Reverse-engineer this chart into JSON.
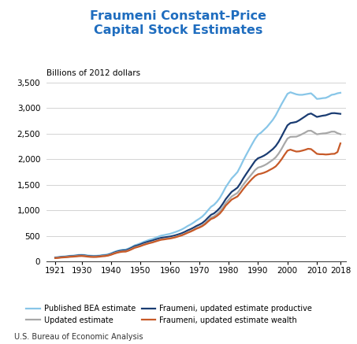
{
  "title": "Fraumeni Constant-Price\nCapital Stock Estimates",
  "ylabel": "Billions of 2012 dollars",
  "ylim": [
    0,
    3500
  ],
  "yticks": [
    0,
    500,
    1000,
    1500,
    2000,
    2500,
    3000,
    3500
  ],
  "xlabel_note": "U.S. Bureau of Economic Analysis",
  "xticks": [
    1921,
    1930,
    1940,
    1950,
    1960,
    1970,
    1980,
    1990,
    2000,
    2010,
    2018
  ],
  "title_color": "#1f6dbf",
  "background_color": "#ffffff",
  "grid_color": "#cccccc",
  "years": [
    1921,
    1922,
    1923,
    1924,
    1925,
    1926,
    1927,
    1928,
    1929,
    1930,
    1931,
    1932,
    1933,
    1934,
    1935,
    1936,
    1937,
    1938,
    1939,
    1940,
    1941,
    1942,
    1943,
    1944,
    1945,
    1946,
    1947,
    1948,
    1949,
    1950,
    1951,
    1952,
    1953,
    1954,
    1955,
    1956,
    1957,
    1958,
    1959,
    1960,
    1961,
    1962,
    1963,
    1964,
    1965,
    1966,
    1967,
    1968,
    1969,
    1970,
    1971,
    1972,
    1973,
    1974,
    1975,
    1976,
    1977,
    1978,
    1979,
    1980,
    1981,
    1982,
    1983,
    1984,
    1985,
    1986,
    1987,
    1988,
    1989,
    1990,
    1991,
    1992,
    1993,
    1994,
    1995,
    1996,
    1997,
    1998,
    1999,
    2000,
    2001,
    2002,
    2003,
    2004,
    2005,
    2006,
    2007,
    2008,
    2009,
    2010,
    2011,
    2012,
    2013,
    2014,
    2015,
    2016,
    2017,
    2018
  ],
  "published_bea": [
    80,
    85,
    93,
    98,
    103,
    110,
    114,
    120,
    128,
    130,
    126,
    118,
    113,
    110,
    111,
    116,
    125,
    130,
    141,
    160,
    185,
    205,
    220,
    230,
    233,
    255,
    283,
    315,
    333,
    355,
    382,
    402,
    423,
    438,
    460,
    483,
    505,
    515,
    528,
    540,
    558,
    578,
    600,
    625,
    656,
    692,
    722,
    758,
    800,
    836,
    878,
    935,
    1005,
    1070,
    1108,
    1168,
    1245,
    1345,
    1455,
    1540,
    1625,
    1685,
    1750,
    1860,
    1980,
    2090,
    2195,
    2300,
    2400,
    2480,
    2520,
    2575,
    2630,
    2700,
    2770,
    2860,
    2970,
    3080,
    3180,
    3280,
    3310,
    3290,
    3270,
    3260,
    3260,
    3270,
    3280,
    3290,
    3240,
    3180,
    3185,
    3195,
    3200,
    3225,
    3260,
    3270,
    3290,
    3300
  ],
  "fraumeni_productive": [
    75,
    80,
    87,
    91,
    96,
    103,
    106,
    112,
    119,
    121,
    117,
    108,
    103,
    100,
    101,
    106,
    114,
    118,
    129,
    148,
    172,
    192,
    206,
    215,
    218,
    240,
    267,
    297,
    314,
    334,
    358,
    376,
    394,
    408,
    427,
    445,
    462,
    469,
    479,
    487,
    499,
    514,
    532,
    552,
    577,
    607,
    631,
    660,
    693,
    720,
    751,
    798,
    858,
    913,
    940,
    988,
    1047,
    1128,
    1220,
    1292,
    1362,
    1402,
    1445,
    1530,
    1628,
    1716,
    1800,
    1885,
    1968,
    2020,
    2042,
    2070,
    2106,
    2152,
    2198,
    2258,
    2342,
    2448,
    2558,
    2664,
    2708,
    2718,
    2730,
    2762,
    2800,
    2838,
    2878,
    2895,
    2862,
    2828,
    2840,
    2852,
    2860,
    2880,
    2900,
    2902,
    2895,
    2888
  ],
  "updated_estimate": [
    70,
    74,
    81,
    85,
    90,
    96,
    99,
    104,
    110,
    112,
    108,
    100,
    95,
    93,
    94,
    99,
    107,
    111,
    121,
    138,
    160,
    178,
    191,
    199,
    202,
    222,
    247,
    275,
    291,
    309,
    331,
    349,
    366,
    380,
    398,
    416,
    432,
    440,
    450,
    457,
    469,
    483,
    501,
    519,
    542,
    570,
    594,
    622,
    653,
    677,
    707,
    750,
    806,
    858,
    882,
    924,
    978,
    1052,
    1142,
    1207,
    1271,
    1306,
    1342,
    1420,
    1505,
    1578,
    1650,
    1720,
    1790,
    1836,
    1853,
    1877,
    1908,
    1948,
    1988,
    2038,
    2112,
    2204,
    2308,
    2404,
    2438,
    2440,
    2442,
    2464,
    2492,
    2522,
    2555,
    2558,
    2524,
    2488,
    2496,
    2504,
    2508,
    2522,
    2540,
    2540,
    2510,
    2490
  ],
  "fraumeni_wealth": [
    65,
    69,
    76,
    80,
    84,
    90,
    93,
    98,
    104,
    106,
    102,
    94,
    89,
    87,
    88,
    93,
    101,
    105,
    115,
    131,
    152,
    170,
    183,
    191,
    193,
    213,
    238,
    266,
    282,
    300,
    322,
    340,
    357,
    371,
    389,
    407,
    424,
    431,
    441,
    448,
    460,
    474,
    492,
    510,
    533,
    560,
    583,
    610,
    640,
    662,
    690,
    730,
    782,
    830,
    852,
    890,
    938,
    1008,
    1094,
    1152,
    1210,
    1241,
    1272,
    1342,
    1420,
    1490,
    1556,
    1618,
    1672,
    1706,
    1718,
    1736,
    1760,
    1792,
    1822,
    1860,
    1924,
    2000,
    2088,
    2168,
    2188,
    2168,
    2150,
    2154,
    2168,
    2184,
    2204,
    2198,
    2154,
    2106,
    2098,
    2098,
    2092,
    2096,
    2104,
    2106,
    2140,
    2310
  ],
  "line_colors": {
    "published_bea": "#88c6e8",
    "fraumeni_productive": "#1a3c72",
    "updated_estimate": "#a8a8a8",
    "fraumeni_wealth": "#c75a28"
  },
  "line_widths": {
    "published_bea": 1.6,
    "fraumeni_productive": 1.6,
    "updated_estimate": 1.6,
    "fraumeni_wealth": 1.6
  },
  "legend_labels": {
    "published_bea": "Published BEA estimate",
    "fraumeni_productive": "Fraumeni, updated estimate productive",
    "updated_estimate": "Updated estimate",
    "fraumeni_wealth": "Fraumeni, updated estimate wealth"
  }
}
